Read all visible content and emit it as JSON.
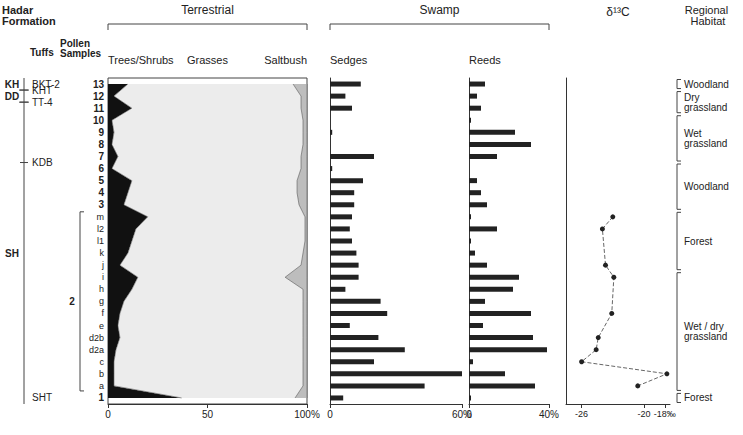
{
  "chart_data": {
    "type": "pollen_diagram",
    "formation_label": "Hadar Formation",
    "column_labels": {
      "tuffs": "Tuffs",
      "samples": "Pollen Samples",
      "habitat": "Regional Habitat"
    },
    "categories": [
      "13",
      "12",
      "11",
      "10",
      "9",
      "8",
      "7",
      "6",
      "5",
      "4",
      "3",
      "m",
      "l2",
      "l1",
      "k",
      "j",
      "i",
      "h",
      "g",
      "f",
      "e",
      "d2b",
      "d2a",
      "c",
      "b",
      "a",
      "1"
    ],
    "sample_groups": [
      {
        "label": "2",
        "from": "m",
        "to": "a"
      }
    ],
    "members": [
      {
        "label": "KH",
        "from": "13",
        "to": "13"
      },
      {
        "label": "DD",
        "from": "12",
        "to": "12"
      },
      {
        "label": "SH",
        "from": "11",
        "to": "1"
      }
    ],
    "tuffs": [
      {
        "label": "BKT-2",
        "at": "13"
      },
      {
        "label": "KHT",
        "below": "13"
      },
      {
        "label": "TT-4",
        "below": "12"
      },
      {
        "label": "KDB",
        "below": "7"
      },
      {
        "label": "SHT",
        "at": "1"
      }
    ],
    "headers": [
      {
        "label": "Terrestrial",
        "panels": [
          0
        ]
      },
      {
        "label": "Swamp",
        "panels": [
          1,
          2
        ]
      }
    ],
    "panels": [
      {
        "type": "area",
        "stacked": true,
        "xlim": [
          0,
          100
        ],
        "xticks": [
          0,
          50,
          {
            "value": 100,
            "label": "100%"
          }
        ],
        "series": [
          {
            "name": "Trees/Shrubs",
            "color": "#111111",
            "values": [
              10,
              3,
              12,
              2,
              3,
              2,
              5,
              2,
              12,
              10,
              8,
              20,
              14,
              12,
              10,
              6,
              15,
              12,
              8,
              6,
              5,
              6,
              4,
              3,
              3,
              3,
              37
            ]
          },
          {
            "name": "Grasses",
            "color": "#ececec",
            "values": [
              83,
              94,
              85,
              96,
              95,
              96,
              92,
              95,
              83,
              85,
              88,
              79,
              85,
              87,
              88,
              91,
              74,
              86,
              90,
              92,
              93,
              92,
              94,
              95,
              95,
              95,
              57
            ]
          },
          {
            "name": "Saltbush",
            "color": "#bdbdbd",
            "values": [
              7,
              3,
              3,
              2,
              2,
              2,
              3,
              3,
              5,
              5,
              4,
              1,
              1,
              1,
              2,
              3,
              11,
              2,
              2,
              2,
              2,
              2,
              2,
              2,
              2,
              2,
              6
            ]
          }
        ]
      },
      {
        "type": "bar",
        "xlim": [
          0,
          60
        ],
        "xticks": [
          0,
          {
            "value": 60,
            "label": "60%"
          }
        ],
        "series": [
          {
            "name": "Sedges",
            "color": "#222222",
            "values": [
              14,
              7,
              10,
              0,
              1,
              0,
              20,
              1,
              15,
              11,
              11,
              10,
              9,
              10,
              12,
              13,
              13,
              7,
              23,
              26,
              9,
              22,
              34,
              20,
              60,
              43,
              6
            ]
          }
        ]
      },
      {
        "type": "bar",
        "xlim": [
          0,
          40
        ],
        "xticks": [
          0,
          {
            "value": 40,
            "label": "40%"
          }
        ],
        "series": [
          {
            "name": "Reeds",
            "color": "#222222",
            "values": [
              8,
              4,
              6,
              1,
              23,
              31,
              14,
              0,
              4,
              6,
              9,
              1,
              14,
              1,
              3,
              9,
              25,
              22,
              8,
              31,
              7,
              32,
              39,
              2,
              18,
              33,
              1
            ]
          }
        ]
      },
      {
        "type": "line",
        "title": "δ¹³C",
        "xlim": [
          -27.5,
          -17.5
        ],
        "xticks": [
          -26,
          -20,
          {
            "value": -18,
            "label": "-18‰"
          }
        ],
        "series": [
          {
            "color": "#222222",
            "marker": "circle",
            "line_style": "dashed",
            "values": [
              null,
              null,
              null,
              null,
              null,
              null,
              null,
              null,
              null,
              null,
              null,
              -23,
              -24,
              null,
              null,
              -23.7,
              -22.9,
              null,
              null,
              -23.1,
              null,
              -24.4,
              -24.6,
              -26,
              -17.8,
              -20.6,
              null
            ]
          }
        ]
      }
    ],
    "habitats": [
      {
        "label": "Woodland",
        "from": "13",
        "to": "13"
      },
      {
        "label": "Dry grassland",
        "from": "12",
        "to": "11"
      },
      {
        "label": "Wet grassland",
        "from": "10",
        "to": "7"
      },
      {
        "label": "Woodland",
        "from": "6",
        "to": "3"
      },
      {
        "label": "Forest",
        "from": "m",
        "to": "j"
      },
      {
        "label": "Wet / dry grassland",
        "from": "i",
        "to": "a"
      },
      {
        "label": "Forest",
        "from": "1",
        "to": "1"
      }
    ]
  }
}
